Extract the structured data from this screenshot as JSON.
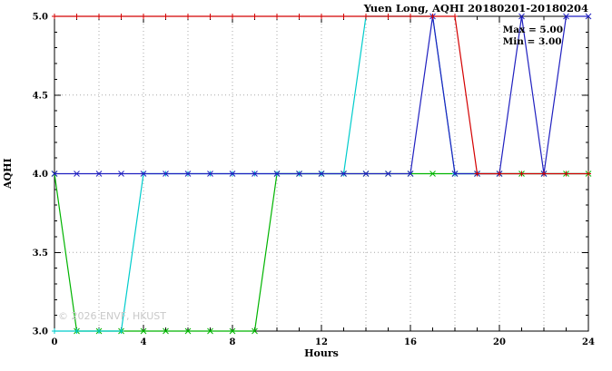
{
  "chart_data": {
    "type": "line",
    "title": "Yuen Long, AQHI 20180201-20180204",
    "xlabel": "Hours",
    "ylabel": "AQHI",
    "xlim": [
      0,
      24
    ],
    "ylim": [
      3.0,
      5.0
    ],
    "x_ticks": [
      0,
      4,
      8,
      12,
      16,
      20,
      24
    ],
    "y_ticks": [
      3.0,
      3.5,
      4.0,
      4.5,
      5.0
    ],
    "grid": true,
    "legend_position": "none",
    "annotations": {
      "max": "Max = 5.00",
      "min": "Min = 3.00"
    },
    "watermark": "© 2026 ENVF, HKUST",
    "x": [
      0,
      1,
      2,
      3,
      4,
      5,
      6,
      7,
      8,
      9,
      10,
      11,
      12,
      13,
      14,
      15,
      16,
      17,
      18,
      19,
      20,
      21,
      22,
      23,
      24
    ],
    "series": [
      {
        "name": "green",
        "color": "#00b400",
        "marker": "cross",
        "values": [
          4,
          3,
          3,
          3,
          3,
          3,
          3,
          3,
          3,
          3,
          4,
          4,
          4,
          4,
          4,
          4,
          4,
          4,
          4,
          4,
          4,
          4,
          4,
          4,
          4
        ]
      },
      {
        "name": "cyan",
        "color": "#00cccc",
        "marker": "plus",
        "values": [
          3,
          3,
          3,
          3,
          4,
          4,
          4,
          4,
          4,
          4,
          4,
          4,
          4,
          4,
          5,
          5,
          5,
          5,
          4,
          4,
          4,
          4,
          4,
          4,
          4
        ]
      },
      {
        "name": "blue",
        "color": "#2020c0",
        "marker": "cross",
        "values": [
          4,
          4,
          4,
          4,
          4,
          4,
          4,
          4,
          4,
          4,
          4,
          4,
          4,
          4,
          4,
          4,
          4,
          5,
          4,
          4,
          4,
          5,
          4,
          5,
          5
        ]
      },
      {
        "name": "red",
        "color": "#d40000",
        "marker": "plus",
        "values": [
          5,
          5,
          5,
          5,
          5,
          5,
          5,
          5,
          5,
          5,
          5,
          5,
          5,
          5,
          5,
          5,
          5,
          5,
          5,
          4,
          4,
          4,
          4,
          4,
          4
        ]
      }
    ]
  }
}
